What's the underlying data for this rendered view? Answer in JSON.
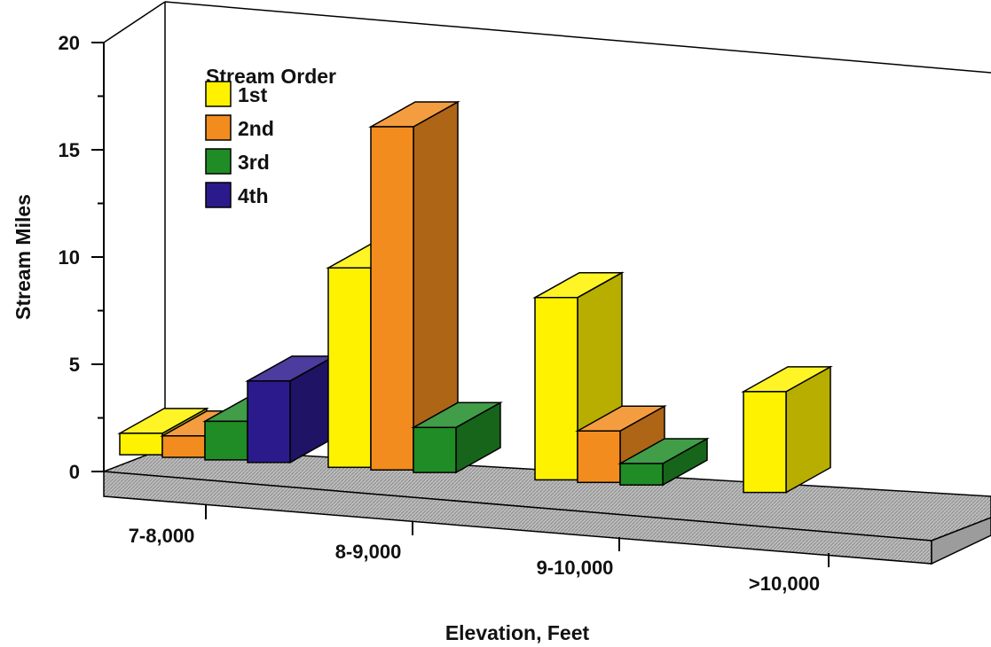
{
  "chart_data": {
    "type": "bar",
    "title": "",
    "xlabel": "Elevation, Feet",
    "ylabel": "Stream Miles",
    "categories": [
      "7-8,000",
      "8-9,000",
      "9-10,000",
      ">10,000"
    ],
    "ylim": [
      0,
      20
    ],
    "yticks": [
      "0",
      "5",
      "10",
      "15",
      "20"
    ],
    "legend_title": "Stream Order",
    "legend_position": "top-left",
    "series": [
      {
        "name": "1st",
        "values": [
          1,
          9.3,
          8.5,
          4.7
        ],
        "color": "#fff200"
      },
      {
        "name": "2nd",
        "values": [
          1,
          16,
          2.4,
          0
        ],
        "color": "#f28c1e"
      },
      {
        "name": "3rd",
        "values": [
          1.8,
          2.1,
          1,
          0
        ],
        "color": "#1f8c26"
      },
      {
        "name": "4th",
        "values": [
          3.8,
          0,
          0,
          0
        ],
        "color": "#2b1a8c"
      }
    ],
    "grid": false,
    "style": "3d"
  }
}
